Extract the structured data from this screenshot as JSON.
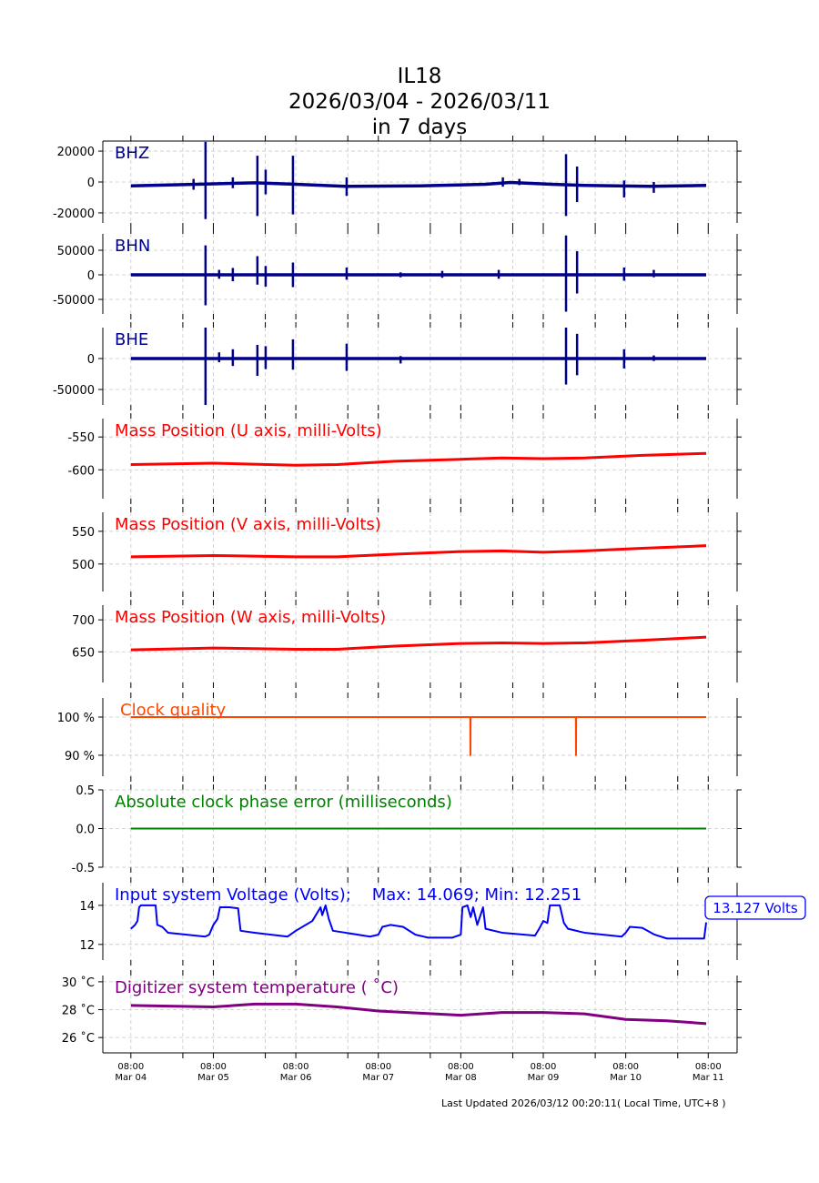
{
  "title": {
    "line1": "IL18",
    "line2": "2026/03/04 - 2026/03/11",
    "line3": "in 7 days"
  },
  "footer": "Last Updated 2026/03/12 00:20:11( Local Time, UTC+8 )",
  "chart_data": {
    "type": "line",
    "x_unit": "days since Mar 04 08:00",
    "xlim": [
      -0.34,
      7.35
    ],
    "x_ticks": [
      {
        "day": 0,
        "label1": "08:00",
        "label2": "Mar 04"
      },
      {
        "day": 1,
        "label1": "08:00",
        "label2": "Mar 05"
      },
      {
        "day": 2,
        "label1": "08:00",
        "label2": "Mar 06"
      },
      {
        "day": 3,
        "label1": "08:00",
        "label2": "Mar 07"
      },
      {
        "day": 4,
        "label1": "08:00",
        "label2": "Mar 08"
      },
      {
        "day": 5,
        "label1": "08:00",
        "label2": "Mar 09"
      },
      {
        "day": 6,
        "label1": "08:00",
        "label2": "Mar 10"
      },
      {
        "day": 7,
        "label1": "08:00",
        "label2": "Mar 11"
      }
    ],
    "grid": true,
    "panels": [
      {
        "name": "BHZ",
        "label": "BHZ",
        "color": "#00008b",
        "kind": "seismic",
        "ylim": [
          -26500,
          26500
        ],
        "yticks": [
          {
            "v": 20000,
            "t": "20000"
          },
          {
            "v": 0,
            "t": "0"
          },
          {
            "v": -20000,
            "t": "-20000"
          }
        ],
        "baseline": [
          [
            0,
            -2500
          ],
          [
            0.8,
            -1500
          ],
          [
            1.5,
            -500
          ],
          [
            2,
            -1500
          ],
          [
            2.6,
            -2800
          ],
          [
            3.5,
            -2500
          ],
          [
            4.3,
            -1500
          ],
          [
            4.6,
            -300
          ],
          [
            5.1,
            -1500
          ],
          [
            5.5,
            -2200
          ],
          [
            6.3,
            -2800
          ],
          [
            6.975,
            -2200
          ]
        ],
        "spikes": [
          [
            0.76,
            2000,
            -5000
          ],
          [
            0.905,
            26000,
            -24000
          ],
          [
            1.236,
            3000,
            -4000
          ],
          [
            1.534,
            17000,
            -22000
          ],
          [
            1.634,
            8000,
            -8000
          ],
          [
            1.965,
            17000,
            -21000
          ],
          [
            2.616,
            3000,
            -9000
          ],
          [
            4.51,
            3000,
            -3000
          ],
          [
            4.71,
            2000,
            -2000
          ],
          [
            5.276,
            18000,
            -22000
          ],
          [
            5.41,
            10000,
            -13000
          ],
          [
            5.98,
            1000,
            -10000
          ],
          [
            6.34,
            0,
            -7000
          ]
        ]
      },
      {
        "name": "BHN",
        "label": "BHN",
        "color": "#00008b",
        "kind": "seismic",
        "ylim": [
          -79600,
          83300
        ],
        "yticks": [
          {
            "v": 50000,
            "t": "50000"
          },
          {
            "v": 0,
            "t": "0"
          },
          {
            "v": -50000,
            "t": "-50000"
          }
        ],
        "baseline": [
          [
            0,
            0
          ],
          [
            6.975,
            0
          ]
        ],
        "spikes": [
          [
            0.905,
            60000,
            -62000
          ],
          [
            1.07,
            10000,
            -8000
          ],
          [
            1.236,
            14000,
            -13000
          ],
          [
            1.534,
            38000,
            -20000
          ],
          [
            1.634,
            18000,
            -24000
          ],
          [
            1.965,
            25000,
            -25000
          ],
          [
            2.616,
            15000,
            -10000
          ],
          [
            3.27,
            5000,
            -5000
          ],
          [
            3.775,
            8000,
            -6000
          ],
          [
            4.46,
            10000,
            -8000
          ],
          [
            5.276,
            80000,
            -75000
          ],
          [
            5.41,
            48000,
            -38000
          ],
          [
            5.98,
            15000,
            -12000
          ],
          [
            6.34,
            10000,
            -5000
          ]
        ]
      },
      {
        "name": "BHE",
        "label": "BHE",
        "color": "#00008b",
        "kind": "seismic",
        "ylim": [
          -75000,
          50000
        ],
        "yticks": [
          {
            "v": 0,
            "t": "0"
          },
          {
            "v": -50000,
            "t": "-50000"
          }
        ],
        "baseline": [
          [
            0,
            0
          ],
          [
            6.975,
            0
          ]
        ],
        "spikes": [
          [
            0.905,
            50000,
            -75000
          ],
          [
            1.07,
            10000,
            -6000
          ],
          [
            1.236,
            15000,
            -12000
          ],
          [
            1.534,
            22000,
            -28000
          ],
          [
            1.634,
            20000,
            -17000
          ],
          [
            1.965,
            31000,
            -18000
          ],
          [
            2.616,
            24000,
            -20000
          ],
          [
            3.27,
            4000,
            -8000
          ],
          [
            5.276,
            50000,
            -42000
          ],
          [
            5.41,
            40000,
            -27000
          ],
          [
            5.98,
            15000,
            -16000
          ],
          [
            6.34,
            5000,
            -4000
          ]
        ]
      },
      {
        "name": "mass-u",
        "label": "Mass Position (U axis, milli-Volts)",
        "color": "#ff0000",
        "kind": "line",
        "ylim": [
          -644,
          -522
        ],
        "yticks": [
          {
            "v": -550,
            "t": "-550"
          },
          {
            "v": -600,
            "t": "-600"
          }
        ],
        "points": [
          [
            0,
            -592
          ],
          [
            1,
            -590
          ],
          [
            2,
            -593
          ],
          [
            2.5,
            -592
          ],
          [
            3.2,
            -587
          ],
          [
            4,
            -584
          ],
          [
            4.5,
            -582
          ],
          [
            5,
            -583
          ],
          [
            5.5,
            -582
          ],
          [
            6.2,
            -578
          ],
          [
            6.975,
            -575
          ]
        ]
      },
      {
        "name": "mass-v",
        "label": "Mass Position (V axis, milli-Volts)",
        "color": "#ff0000",
        "kind": "line",
        "ylim": [
          458,
          579
        ],
        "yticks": [
          {
            "v": 550,
            "t": "550"
          },
          {
            "v": 500,
            "t": "500"
          }
        ],
        "points": [
          [
            0,
            511
          ],
          [
            1,
            513
          ],
          [
            2,
            511
          ],
          [
            2.5,
            511
          ],
          [
            3.2,
            515
          ],
          [
            4,
            519
          ],
          [
            4.5,
            520
          ],
          [
            5,
            518
          ],
          [
            5.5,
            520
          ],
          [
            6.2,
            524
          ],
          [
            6.975,
            528
          ]
        ]
      },
      {
        "name": "mass-w",
        "label": "Mass Position (W axis, milli-Volts)",
        "color": "#ff0000",
        "kind": "line",
        "ylim": [
          602,
          723
        ],
        "yticks": [
          {
            "v": 700,
            "t": "700"
          },
          {
            "v": 650,
            "t": "650"
          }
        ],
        "points": [
          [
            0,
            653
          ],
          [
            1,
            656
          ],
          [
            2,
            654
          ],
          [
            2.5,
            654
          ],
          [
            3.2,
            659
          ],
          [
            4,
            663
          ],
          [
            4.5,
            664
          ],
          [
            5,
            663
          ],
          [
            5.5,
            664
          ],
          [
            6.2,
            668
          ],
          [
            6.975,
            673
          ]
        ]
      },
      {
        "name": "clock-quality",
        "label": "Clock quality",
        "color": "#ff4500",
        "kind": "line",
        "ylim": [
          84.5,
          105
        ],
        "yticks": [
          {
            "v": 100,
            "t": "100 %"
          },
          {
            "v": 90,
            "t": "90 %"
          }
        ],
        "points": [
          [
            0,
            100
          ],
          [
            4.115,
            100
          ],
          [
            4.117,
            90
          ],
          [
            4.119,
            100
          ],
          [
            5.395,
            100
          ],
          [
            5.397,
            90
          ],
          [
            5.399,
            100
          ],
          [
            6.975,
            100
          ]
        ]
      },
      {
        "name": "phase-error",
        "label": "Absolute clock phase error (milliseconds)",
        "color": "#008000",
        "kind": "line",
        "ylim": [
          -0.5,
          0.5
        ],
        "yticks": [
          {
            "v": 0.5,
            "t": "0.5"
          },
          {
            "v": 0,
            "t": "0.0"
          },
          {
            "v": -0.5,
            "t": "-0.5"
          }
        ],
        "points": [
          [
            0,
            0
          ],
          [
            6.975,
            0
          ]
        ]
      },
      {
        "name": "voltage",
        "label": "Input system Voltage (Volts);    Max: 14.069; Min: 12.251",
        "color": "#0000ff",
        "kind": "line",
        "ylim": [
          11.2,
          15.16
        ],
        "yticks": [
          {
            "v": 14,
            "t": "14"
          },
          {
            "v": 12,
            "t": "12"
          }
        ],
        "max": 14.069,
        "min": 12.251,
        "current_label": "13.127 Volts",
        "points": [
          [
            0,
            12.8
          ],
          [
            0.05,
            13.0
          ],
          [
            0.08,
            13.2
          ],
          [
            0.1,
            13.9
          ],
          [
            0.12,
            14.0
          ],
          [
            0.3,
            14.0
          ],
          [
            0.32,
            13.0
          ],
          [
            0.38,
            12.9
          ],
          [
            0.45,
            12.6
          ],
          [
            0.9,
            12.4
          ],
          [
            0.95,
            12.5
          ],
          [
            1.0,
            13.0
          ],
          [
            1.05,
            13.3
          ],
          [
            1.08,
            13.9
          ],
          [
            1.2,
            13.9
          ],
          [
            1.3,
            13.85
          ],
          [
            1.33,
            12.7
          ],
          [
            1.5,
            12.6
          ],
          [
            1.9,
            12.4
          ],
          [
            2.0,
            12.7
          ],
          [
            2.2,
            13.2
          ],
          [
            2.3,
            13.9
          ],
          [
            2.32,
            13.5
          ],
          [
            2.36,
            14.0
          ],
          [
            2.4,
            13.3
          ],
          [
            2.45,
            12.7
          ],
          [
            2.6,
            12.6
          ],
          [
            2.9,
            12.4
          ],
          [
            3.0,
            12.5
          ],
          [
            3.05,
            12.9
          ],
          [
            3.15,
            13.0
          ],
          [
            3.3,
            12.9
          ],
          [
            3.45,
            12.5
          ],
          [
            3.6,
            12.35
          ],
          [
            3.9,
            12.35
          ],
          [
            4.0,
            12.5
          ],
          [
            4.02,
            13.9
          ],
          [
            4.08,
            14.0
          ],
          [
            4.12,
            13.4
          ],
          [
            4.15,
            13.9
          ],
          [
            4.2,
            13.0
          ],
          [
            4.27,
            13.9
          ],
          [
            4.3,
            12.8
          ],
          [
            4.5,
            12.6
          ],
          [
            4.9,
            12.45
          ],
          [
            4.95,
            12.8
          ],
          [
            5.0,
            13.2
          ],
          [
            5.05,
            13.1
          ],
          [
            5.08,
            14.0
          ],
          [
            5.2,
            14.0
          ],
          [
            5.25,
            13.1
          ],
          [
            5.3,
            12.8
          ],
          [
            5.5,
            12.6
          ],
          [
            5.95,
            12.4
          ],
          [
            6.0,
            12.6
          ],
          [
            6.05,
            12.9
          ],
          [
            6.2,
            12.85
          ],
          [
            6.35,
            12.5
          ],
          [
            6.5,
            12.3
          ],
          [
            6.95,
            12.3
          ],
          [
            6.975,
            13.127
          ]
        ]
      },
      {
        "name": "temperature",
        "label": "Digitizer system temperature ( ˚C)",
        "color": "#800080",
        "kind": "line",
        "ylim": [
          24.9,
          30.45
        ],
        "yticks": [
          {
            "v": 30,
            "t": "30 ˚C"
          },
          {
            "v": 28,
            "t": "28 ˚C"
          },
          {
            "v": 26,
            "t": "26 ˚C"
          }
        ],
        "points": [
          [
            0,
            28.3
          ],
          [
            1,
            28.2
          ],
          [
            1.5,
            28.4
          ],
          [
            2,
            28.4
          ],
          [
            2.5,
            28.2
          ],
          [
            3,
            27.9
          ],
          [
            4,
            27.6
          ],
          [
            4.5,
            27.8
          ],
          [
            5,
            27.8
          ],
          [
            5.5,
            27.7
          ],
          [
            6,
            27.3
          ],
          [
            6.5,
            27.2
          ],
          [
            6.975,
            27.0
          ]
        ]
      }
    ]
  }
}
